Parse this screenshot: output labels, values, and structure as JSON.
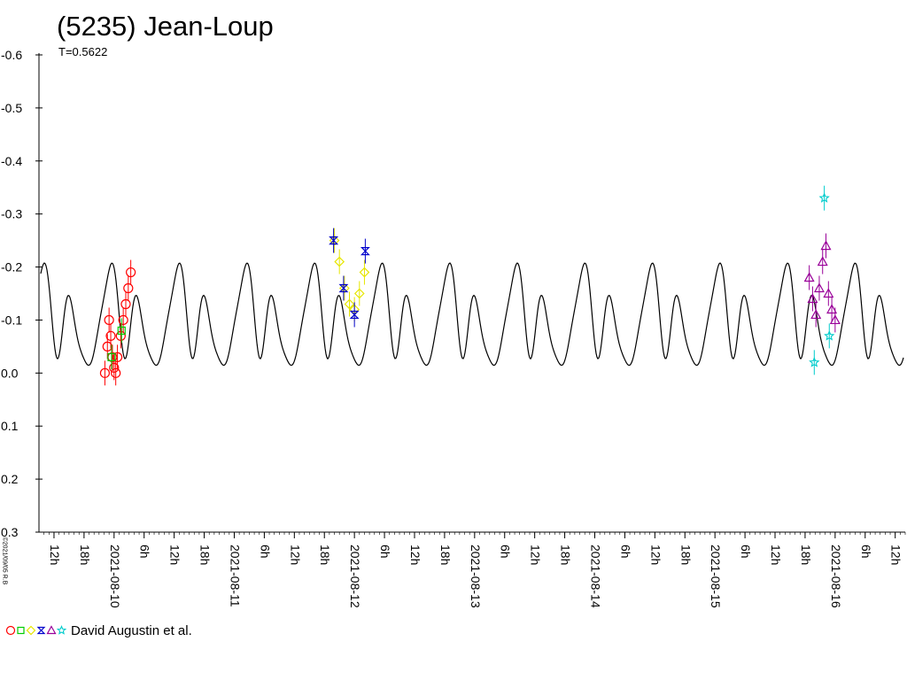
{
  "title": "(5235) Jean-Loup",
  "subtitle": "T=0.5622",
  "stamp": "©2021/09/05 R.B",
  "legend_label": "David Augustin et al.",
  "legend_markers": [
    {
      "shape": "circle",
      "color": "#ff0000"
    },
    {
      "shape": "square",
      "color": "#00cc00"
    },
    {
      "shape": "diamond",
      "color": "#e6e600"
    },
    {
      "shape": "hourglass",
      "color": "#0000cc"
    },
    {
      "shape": "triangle",
      "color": "#990099"
    },
    {
      "shape": "star",
      "color": "#00cccc"
    }
  ],
  "chart_data": {
    "type": "scatter",
    "title": "(5235) Jean-Loup",
    "subtitle": "T=0.5622",
    "y_inverted": true,
    "ylim": [
      -0.6,
      0.3
    ],
    "yticks": [
      -0.6,
      -0.5,
      -0.4,
      -0.3,
      -0.2,
      -0.1,
      0.0,
      0.1,
      0.2,
      0.3
    ],
    "ytick_labels": [
      "-0.6",
      "-0.5",
      "-0.4",
      "-0.3",
      "-0.2",
      "-0.1",
      "0.0",
      "0.1",
      "0.2",
      "0.3"
    ],
    "xlim": [
      "2021-08-09T09:00",
      "2021-08-16T14:00"
    ],
    "xtick_labels": [
      "12h",
      "18h",
      "2021-08-10",
      "6h",
      "12h",
      "18h",
      "2021-08-11",
      "6h",
      "12h",
      "18h",
      "2021-08-12",
      "6h",
      "12h",
      "18h",
      "2021-08-13",
      "6h",
      "12h",
      "18h",
      "2021-08-14",
      "6h",
      "12h",
      "18h",
      "2021-08-15",
      "6h",
      "12h",
      "18h",
      "2021-08-16",
      "6h",
      "12h"
    ],
    "model_curve": {
      "period_days": 0.5622,
      "color": "#000000"
    },
    "series": [
      {
        "marker": "circle",
        "color": "#ff0000",
        "points": [
          [
            "2021-08-09T22:10",
            0.0
          ],
          [
            "2021-08-09T22:40",
            -0.05
          ],
          [
            "2021-08-09T23:00",
            -0.1
          ],
          [
            "2021-08-09T23:20",
            -0.07
          ],
          [
            "2021-08-09T23:40",
            -0.03
          ],
          [
            "2021-08-10T00:00",
            -0.01
          ],
          [
            "2021-08-10T00:20",
            0.0
          ],
          [
            "2021-08-10T00:40",
            -0.03
          ],
          [
            "2021-08-10T01:20",
            -0.07
          ],
          [
            "2021-08-10T01:50",
            -0.1
          ],
          [
            "2021-08-10T02:20",
            -0.13
          ],
          [
            "2021-08-10T02:50",
            -0.16
          ],
          [
            "2021-08-10T03:20",
            -0.19
          ]
        ]
      },
      {
        "marker": "square",
        "color": "#00cc00",
        "points": [
          [
            "2021-08-09T23:30",
            -0.03
          ],
          [
            "2021-08-10T01:30",
            -0.08
          ]
        ]
      },
      {
        "marker": "diamond",
        "color": "#e6e600",
        "points": [
          [
            "2021-08-11T20:00",
            -0.25
          ],
          [
            "2021-08-11T21:00",
            -0.21
          ],
          [
            "2021-08-11T22:00",
            -0.16
          ],
          [
            "2021-08-11T23:00",
            -0.13
          ],
          [
            "2021-08-12T00:00",
            -0.12
          ],
          [
            "2021-08-12T01:00",
            -0.15
          ],
          [
            "2021-08-12T02:00",
            -0.19
          ]
        ]
      },
      {
        "marker": "hourglass",
        "color": "#0000cc",
        "points": [
          [
            "2021-08-11T19:50",
            -0.25
          ],
          [
            "2021-08-11T21:50",
            -0.16
          ],
          [
            "2021-08-12T00:00",
            -0.11
          ],
          [
            "2021-08-12T02:10",
            -0.23
          ]
        ]
      },
      {
        "marker": "triangle",
        "color": "#990099",
        "points": [
          [
            "2021-08-15T18:50",
            -0.18
          ],
          [
            "2021-08-15T19:30",
            -0.14
          ],
          [
            "2021-08-15T20:10",
            -0.11
          ],
          [
            "2021-08-15T20:50",
            -0.16
          ],
          [
            "2021-08-15T21:30",
            -0.21
          ],
          [
            "2021-08-15T22:10",
            -0.24
          ],
          [
            "2021-08-15T22:40",
            -0.15
          ],
          [
            "2021-08-15T23:20",
            -0.12
          ],
          [
            "2021-08-16T00:00",
            -0.1
          ]
        ]
      },
      {
        "marker": "star",
        "color": "#00cccc",
        "points": [
          [
            "2021-08-15T19:50",
            -0.02
          ],
          [
            "2021-08-15T21:50",
            -0.33
          ],
          [
            "2021-08-15T22:50",
            -0.07
          ]
        ]
      }
    ]
  }
}
